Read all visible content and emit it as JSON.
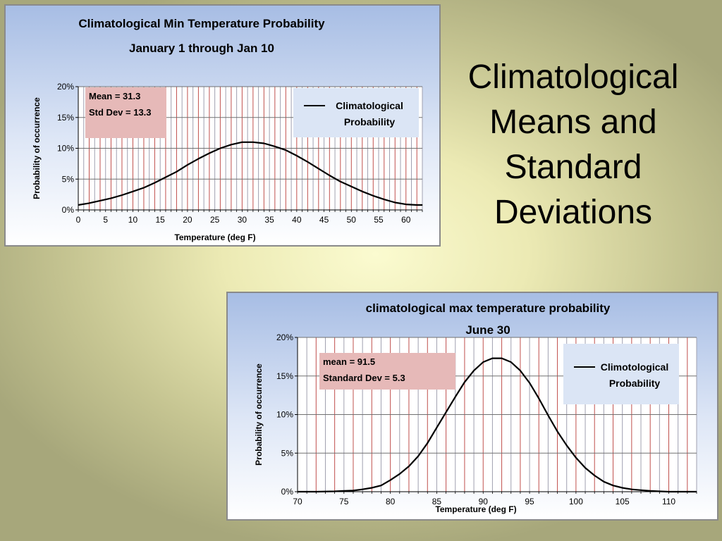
{
  "slide": {
    "title_lines": [
      "Climatological",
      "Means and",
      "Standard",
      "Deviations"
    ]
  },
  "chart_data": [
    {
      "type": "line",
      "title": "Climatological Min Temperature Probability",
      "subtitle": "January 1 through Jan 10",
      "xlabel": "Temperature (deg F)",
      "ylabel": "Probability of occurrence",
      "xlim": [
        0,
        63
      ],
      "ylim": [
        0,
        20
      ],
      "xticks": [
        0,
        5,
        10,
        15,
        20,
        25,
        30,
        35,
        40,
        45,
        50,
        55,
        60
      ],
      "xtick_labels": [
        "0",
        "5",
        "10",
        "15",
        "20",
        "25",
        "30",
        "35",
        "40",
        "45",
        "50",
        "55",
        "60"
      ],
      "yticks": [
        0,
        5,
        10,
        15,
        20
      ],
      "ytick_labels": [
        "0%",
        "5%",
        "10%",
        "15%",
        "20%"
      ],
      "annotation": [
        "Mean = 31.3",
        "Std Dev = 13.3"
      ],
      "legend": {
        "position": "top-right",
        "label": [
          "Climatological",
          "Probability"
        ]
      },
      "grid": true,
      "series": [
        {
          "name": "Climatological Probability",
          "x": [
            0,
            2,
            4,
            6,
            8,
            10,
            12,
            14,
            16,
            18,
            20,
            22,
            24,
            26,
            28,
            30,
            32,
            34,
            36,
            38,
            40,
            42,
            44,
            46,
            48,
            50,
            52,
            54,
            56,
            58,
            60,
            62,
            63
          ],
          "y": [
            0.8,
            1.1,
            1.5,
            1.9,
            2.4,
            3.0,
            3.6,
            4.4,
            5.3,
            6.2,
            7.3,
            8.3,
            9.2,
            10.0,
            10.6,
            11.0,
            11.0,
            10.8,
            10.3,
            9.7,
            8.8,
            7.8,
            6.7,
            5.6,
            4.6,
            3.8,
            3.0,
            2.3,
            1.7,
            1.2,
            0.9,
            0.8,
            0.8
          ]
        }
      ]
    },
    {
      "type": "line",
      "title": "climatological max temperature probability",
      "subtitle": "June 30",
      "xlabel": "Temperature (deg F)",
      "ylabel": "Probability of occurrence",
      "xlim": [
        70,
        113
      ],
      "ylim": [
        0,
        20
      ],
      "xticks": [
        70,
        75,
        80,
        85,
        90,
        95,
        100,
        105,
        110
      ],
      "xtick_labels": [
        "70",
        "75",
        "80",
        "85",
        "90",
        "95",
        "100",
        "105",
        "110"
      ],
      "yticks": [
        0,
        5,
        10,
        15,
        20
      ],
      "ytick_labels": [
        "0%",
        "5%",
        "10%",
        "15%",
        "20%"
      ],
      "annotation": [
        "mean = 91.5",
        "Standard Dev = 5.3"
      ],
      "legend": {
        "position": "top-right",
        "label": [
          "Climotological",
          "Probability"
        ]
      },
      "grid": true,
      "series": [
        {
          "name": "Climotological Probability",
          "x": [
            70,
            72,
            74,
            75,
            76,
            77,
            78,
            79,
            80,
            81,
            82,
            83,
            84,
            85,
            86,
            87,
            88,
            89,
            90,
            91,
            92,
            93,
            94,
            95,
            96,
            97,
            98,
            99,
            100,
            101,
            102,
            103,
            104,
            105,
            106,
            107,
            108,
            109,
            110,
            111,
            112,
            113
          ],
          "y": [
            0,
            0,
            0.05,
            0.1,
            0.15,
            0.3,
            0.5,
            0.8,
            1.5,
            2.3,
            3.3,
            4.6,
            6.3,
            8.3,
            10.3,
            12.3,
            14.2,
            15.7,
            16.8,
            17.3,
            17.3,
            16.8,
            15.7,
            14.1,
            12.1,
            9.9,
            7.8,
            6.0,
            4.4,
            3.1,
            2.1,
            1.3,
            0.8,
            0.5,
            0.3,
            0.2,
            0.1,
            0.05,
            0,
            0,
            0,
            0
          ]
        }
      ]
    }
  ]
}
